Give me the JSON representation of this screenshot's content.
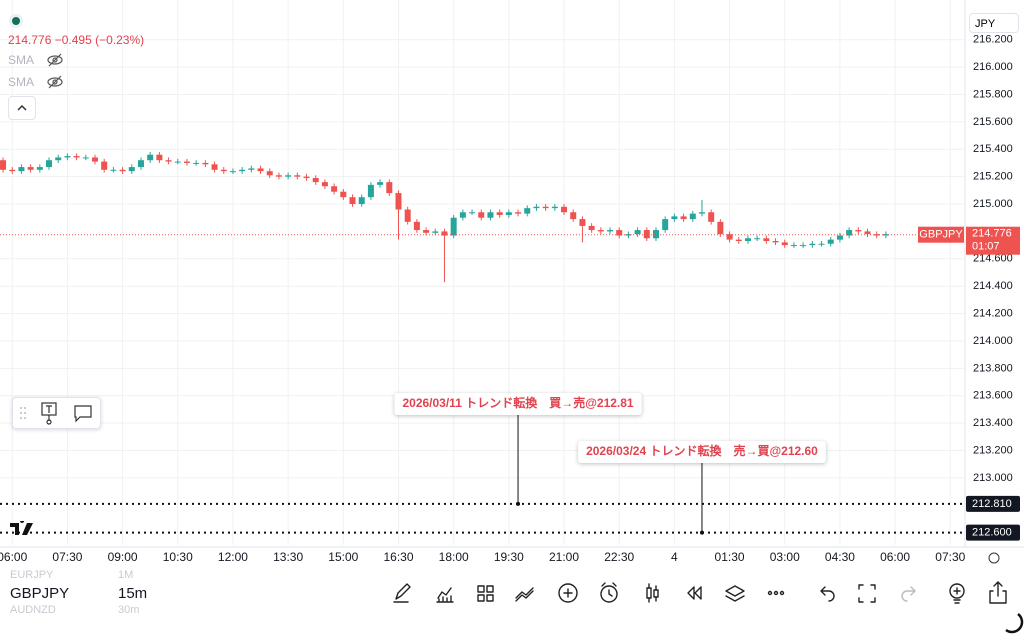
{
  "header": {
    "quote": "214.776 −0.495 (−0.23%)",
    "indicators": [
      "SMA",
      "SMA"
    ],
    "currency": "JPY"
  },
  "chart_data": {
    "type": "candlestick",
    "symbol": "GBPJPY",
    "up_color": "#26a69a",
    "down_color": "#ef5350",
    "open": [
      215.32,
      215.25,
      215.24,
      215.27,
      215.25,
      215.27,
      215.32,
      215.34,
      215.35,
      215.34,
      215.34,
      215.31,
      215.25,
      215.25,
      215.24,
      215.27,
      215.32,
      215.36,
      215.32,
      215.31,
      215.31,
      215.3,
      215.3,
      215.29,
      215.25,
      215.24,
      215.24,
      215.25,
      215.26,
      215.24,
      215.21,
      215.2,
      215.21,
      215.2,
      215.19,
      215.16,
      215.13,
      215.09,
      215.05,
      215.0,
      215.05,
      215.14,
      215.16,
      215.08,
      214.96,
      214.87,
      214.81,
      214.79,
      214.8,
      214.77,
      214.9,
      214.94,
      214.94,
      214.9,
      214.94,
      214.92,
      214.94,
      214.93,
      214.97,
      214.98,
      214.97,
      214.98,
      214.94,
      214.89,
      214.84,
      214.81,
      214.8,
      214.81,
      214.77,
      214.78,
      214.81,
      214.75,
      214.81,
      214.89,
      214.91,
      214.89,
      214.93,
      214.94,
      214.87,
      214.78,
      214.74,
      214.73,
      214.75,
      214.75,
      214.73,
      214.72,
      214.7,
      214.7,
      214.7,
      214.71,
      214.71,
      214.74,
      214.77,
      214.81,
      214.8,
      214.78,
      214.77
    ],
    "high": [
      215.34,
      215.27,
      215.29,
      215.29,
      215.29,
      215.34,
      215.36,
      215.37,
      215.37,
      215.36,
      215.36,
      215.33,
      215.27,
      215.27,
      215.29,
      215.34,
      215.38,
      215.38,
      215.34,
      215.33,
      215.33,
      215.32,
      215.32,
      215.31,
      215.27,
      215.26,
      215.27,
      215.28,
      215.28,
      215.26,
      215.23,
      215.23,
      215.23,
      215.22,
      215.21,
      215.18,
      215.15,
      215.11,
      215.07,
      215.07,
      215.16,
      215.18,
      215.18,
      215.1,
      214.98,
      214.89,
      214.83,
      214.82,
      214.82,
      214.92,
      214.96,
      214.96,
      214.96,
      214.96,
      214.96,
      214.96,
      214.96,
      214.99,
      215.0,
      215.0,
      215.0,
      215.0,
      214.96,
      214.91,
      214.86,
      214.83,
      214.83,
      214.83,
      214.8,
      214.83,
      214.83,
      214.83,
      214.91,
      214.93,
      214.93,
      214.95,
      215.03,
      214.96,
      214.89,
      214.8,
      214.76,
      214.77,
      214.77,
      214.77,
      214.75,
      214.74,
      214.72,
      214.72,
      214.73,
      214.73,
      214.76,
      214.79,
      214.83,
      214.83,
      214.82,
      214.8,
      214.8
    ],
    "low": [
      215.23,
      215.22,
      215.22,
      215.23,
      215.23,
      215.25,
      215.3,
      215.32,
      215.32,
      215.32,
      215.29,
      215.23,
      215.23,
      215.22,
      215.22,
      215.25,
      215.3,
      215.3,
      215.29,
      215.29,
      215.28,
      215.28,
      215.27,
      215.23,
      215.22,
      215.22,
      215.22,
      215.23,
      215.22,
      215.19,
      215.18,
      215.18,
      215.18,
      215.17,
      215.14,
      215.11,
      215.07,
      215.03,
      214.98,
      214.98,
      215.03,
      215.12,
      215.06,
      214.74,
      214.85,
      214.79,
      214.77,
      214.77,
      214.43,
      214.75,
      214.88,
      214.92,
      214.88,
      214.88,
      214.9,
      214.9,
      214.91,
      214.91,
      214.95,
      214.95,
      214.95,
      214.92,
      214.87,
      214.72,
      214.79,
      214.78,
      214.78,
      214.75,
      214.75,
      214.76,
      214.73,
      214.73,
      214.79,
      214.87,
      214.87,
      214.87,
      214.91,
      214.85,
      214.76,
      214.72,
      214.71,
      214.71,
      214.73,
      214.71,
      214.7,
      214.68,
      214.68,
      214.68,
      214.68,
      214.69,
      214.69,
      214.72,
      214.75,
      214.78,
      214.76,
      214.75,
      214.75
    ],
    "close": [
      215.25,
      215.24,
      215.27,
      215.25,
      215.27,
      215.32,
      215.34,
      215.35,
      215.34,
      215.34,
      215.31,
      215.25,
      215.25,
      215.24,
      215.27,
      215.32,
      215.36,
      215.32,
      215.31,
      215.31,
      215.3,
      215.3,
      215.29,
      215.25,
      215.24,
      215.24,
      215.25,
      215.26,
      215.24,
      215.21,
      215.2,
      215.21,
      215.2,
      215.19,
      215.16,
      215.13,
      215.09,
      215.05,
      215.0,
      215.05,
      215.14,
      215.16,
      215.08,
      214.96,
      214.87,
      214.81,
      214.79,
      214.8,
      214.77,
      214.9,
      214.94,
      214.94,
      214.9,
      214.94,
      214.92,
      214.94,
      214.93,
      214.97,
      214.98,
      214.97,
      214.98,
      214.94,
      214.89,
      214.84,
      214.81,
      214.8,
      214.81,
      214.77,
      214.78,
      214.81,
      214.75,
      214.81,
      214.89,
      214.91,
      214.89,
      214.93,
      214.94,
      214.87,
      214.78,
      214.74,
      214.73,
      214.75,
      214.75,
      214.73,
      214.72,
      214.7,
      214.7,
      214.7,
      214.71,
      214.71,
      214.74,
      214.77,
      214.81,
      214.8,
      214.78,
      214.77,
      214.78
    ],
    "xlim": [
      -0.33,
      104.6
    ],
    "xticks": [
      {
        "value": 1,
        "label": "06:00"
      },
      {
        "value": 7,
        "label": "07:30"
      },
      {
        "value": 13,
        "label": "09:00"
      },
      {
        "value": 19,
        "label": "10:30"
      },
      {
        "value": 25,
        "label": "12:00"
      },
      {
        "value": 31,
        "label": "13:30"
      },
      {
        "value": 37,
        "label": "15:00"
      },
      {
        "value": 43,
        "label": "16:30"
      },
      {
        "value": 49,
        "label": "18:00"
      },
      {
        "value": 55,
        "label": "19:30"
      },
      {
        "value": 61,
        "label": "21:00"
      },
      {
        "value": 67,
        "label": "22:30"
      },
      {
        "value": 73,
        "label": "4"
      },
      {
        "value": 79,
        "label": "01:30"
      },
      {
        "value": 85,
        "label": "03:00"
      },
      {
        "value": 91,
        "label": "04:30"
      },
      {
        "value": 97,
        "label": "06:00"
      },
      {
        "value": 103,
        "label": "07:30"
      }
    ],
    "ylim": [
      212.51,
      216.49
    ],
    "yticks": [
      {
        "value": 216.2,
        "label": "216.200"
      },
      {
        "value": 216.0,
        "label": "216.000"
      },
      {
        "value": 215.8,
        "label": "215.800"
      },
      {
        "value": 215.6,
        "label": "215.600"
      },
      {
        "value": 215.4,
        "label": "215.400"
      },
      {
        "value": 215.2,
        "label": "215.200"
      },
      {
        "value": 215.0,
        "label": "215.000"
      },
      {
        "value": 214.6,
        "label": "214.600"
      },
      {
        "value": 214.4,
        "label": "214.400"
      },
      {
        "value": 214.2,
        "label": "214.200"
      },
      {
        "value": 214.0,
        "label": "214.000"
      },
      {
        "value": 213.8,
        "label": "213.800"
      },
      {
        "value": 213.6,
        "label": "213.600"
      },
      {
        "value": 213.4,
        "label": "213.400"
      },
      {
        "value": 213.2,
        "label": "213.200"
      },
      {
        "value": 213.0,
        "label": "213.000"
      }
    ],
    "grid": true,
    "last_price": {
      "value": 214.776,
      "label": "214.776"
    },
    "countdown": "01:07",
    "levels": [
      {
        "value": 212.81,
        "label": "212.810"
      },
      {
        "value": 212.6,
        "label": "212.600"
      }
    ],
    "annotations": [
      {
        "text": "2026/03/11 トレンド転換　買→売@212.81",
        "x": 56,
        "y": 212.81
      },
      {
        "text": "2026/03/24 トレンド転換　売→買@212.60",
        "x": 76,
        "y": 212.6
      }
    ]
  },
  "footer": {
    "symbols": [
      {
        "symbol": "EURJPY",
        "interval": "1M"
      },
      {
        "symbol": "GBPJPY",
        "interval": "15m"
      },
      {
        "symbol": "AUDNZD",
        "interval": "30m"
      }
    ]
  }
}
